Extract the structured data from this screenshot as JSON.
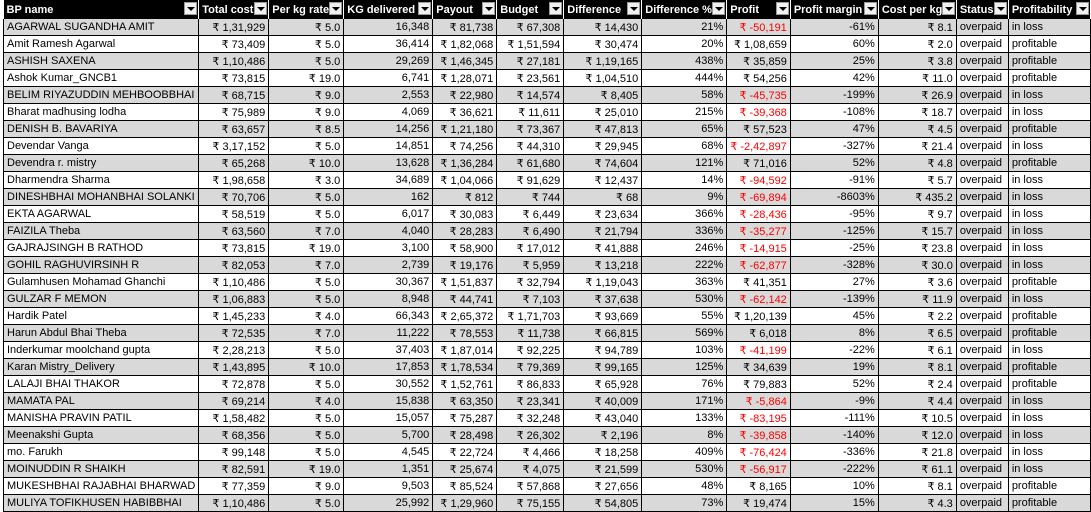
{
  "headers": [
    "BP name",
    "Total cost",
    "Per kg rate",
    "KG delivered",
    "Payout",
    "Budget",
    "Difference",
    "Difference %",
    "Profit",
    "Profit margin",
    "Cost per kg",
    "Status",
    "Profitability"
  ],
  "rows": [
    [
      "AGARWAL SUGANDHA AMIT",
      "₹ 1,31,929",
      "₹ 5.0",
      "16,348",
      "₹ 81,738",
      "₹ 67,308",
      "₹ 14,430",
      "21%",
      "₹ -50,191",
      "-61%",
      "₹ 8.1",
      "overpaid",
      "in loss"
    ],
    [
      "Amit Ramesh Agarwal",
      "₹ 73,409",
      "₹ 5.0",
      "36,414",
      "₹ 1,82,068",
      "₹ 1,51,594",
      "₹ 30,474",
      "20%",
      "₹ 1,08,659",
      "60%",
      "₹ 2.0",
      "overpaid",
      "profitable"
    ],
    [
      "ASHISH SAXENA",
      "₹ 1,10,486",
      "₹ 5.0",
      "29,269",
      "₹ 1,46,345",
      "₹ 27,181",
      "₹ 1,19,165",
      "438%",
      "₹ 35,859",
      "25%",
      "₹ 3.8",
      "overpaid",
      "profitable"
    ],
    [
      "Ashok Kumar_GNCB1",
      "₹ 73,815",
      "₹ 19.0",
      "6,741",
      "₹ 1,28,071",
      "₹ 23,561",
      "₹ 1,04,510",
      "444%",
      "₹ 54,256",
      "42%",
      "₹ 11.0",
      "overpaid",
      "profitable"
    ],
    [
      "BELIM RIYAZUDDIN MEHBOOBBHAI",
      "₹ 68,715",
      "₹ 9.0",
      "2,553",
      "₹ 22,980",
      "₹ 14,574",
      "₹ 8,405",
      "58%",
      "₹ -45,735",
      "-199%",
      "₹ 26.9",
      "overpaid",
      "in loss"
    ],
    [
      "Bharat madhusing lodha",
      "₹ 75,989",
      "₹ 9.0",
      "4,069",
      "₹ 36,621",
      "₹ 11,611",
      "₹ 25,010",
      "215%",
      "₹ -39,368",
      "-108%",
      "₹ 18.7",
      "overpaid",
      "in loss"
    ],
    [
      "DENISH B. BAVARIYA",
      "₹ 63,657",
      "₹ 8.5",
      "14,256",
      "₹ 1,21,180",
      "₹ 73,367",
      "₹ 47,813",
      "65%",
      "₹ 57,523",
      "47%",
      "₹ 4.5",
      "overpaid",
      "profitable"
    ],
    [
      "Devendar Vanga",
      "₹ 3,17,152",
      "₹ 5.0",
      "14,851",
      "₹ 74,256",
      "₹ 44,310",
      "₹ 29,945",
      "68%",
      "₹ -2,42,897",
      "-327%",
      "₹ 21.4",
      "overpaid",
      "in loss"
    ],
    [
      "Devendra r. mistry",
      "₹ 65,268",
      "₹ 10.0",
      "13,628",
      "₹ 1,36,284",
      "₹ 61,680",
      "₹ 74,604",
      "121%",
      "₹ 71,016",
      "52%",
      "₹ 4.8",
      "overpaid",
      "profitable"
    ],
    [
      "Dharmendra Sharma",
      "₹ 1,98,658",
      "₹ 3.0",
      "34,689",
      "₹ 1,04,066",
      "₹ 91,629",
      "₹ 12,437",
      "14%",
      "₹ -94,592",
      "-91%",
      "₹ 5.7",
      "overpaid",
      "in loss"
    ],
    [
      "DINESHBHAI MOHANBHAI SOLANKI",
      "₹ 70,706",
      "₹ 5.0",
      "162",
      "₹ 812",
      "₹ 744",
      "₹ 68",
      "9%",
      "₹ -69,894",
      "-8603%",
      "₹ 435.2",
      "overpaid",
      "in loss"
    ],
    [
      "EKTA AGARWAL",
      "₹ 58,519",
      "₹ 5.0",
      "6,017",
      "₹ 30,083",
      "₹ 6,449",
      "₹ 23,634",
      "366%",
      "₹ -28,436",
      "-95%",
      "₹ 9.7",
      "overpaid",
      "in loss"
    ],
    [
      "FAIZILA Theba",
      "₹ 63,560",
      "₹ 7.0",
      "4,040",
      "₹ 28,283",
      "₹ 6,490",
      "₹ 21,794",
      "336%",
      "₹ -35,277",
      "-125%",
      "₹ 15.7",
      "overpaid",
      "in loss"
    ],
    [
      "GAJRAJSINGH B RATHOD",
      "₹ 73,815",
      "₹ 19.0",
      "3,100",
      "₹ 58,900",
      "₹ 17,012",
      "₹ 41,888",
      "246%",
      "₹ -14,915",
      "-25%",
      "₹ 23.8",
      "overpaid",
      "in loss"
    ],
    [
      "GOHIL RAGHUVIRSINH R",
      "₹ 82,053",
      "₹ 7.0",
      "2,739",
      "₹ 19,176",
      "₹ 5,959",
      "₹ 13,218",
      "222%",
      "₹ -62,877",
      "-328%",
      "₹ 30.0",
      "overpaid",
      "in loss"
    ],
    [
      "Gulamhusen Mohamad Ghanchi",
      "₹ 1,10,486",
      "₹ 5.0",
      "30,367",
      "₹ 1,51,837",
      "₹ 32,794",
      "₹ 1,19,043",
      "363%",
      "₹ 41,351",
      "27%",
      "₹ 3.6",
      "overpaid",
      "profitable"
    ],
    [
      "GULZAR F MEMON",
      "₹ 1,06,883",
      "₹ 5.0",
      "8,948",
      "₹ 44,741",
      "₹ 7,103",
      "₹ 37,638",
      "530%",
      "₹ -62,142",
      "-139%",
      "₹ 11.9",
      "overpaid",
      "in loss"
    ],
    [
      "Hardik Patel",
      "₹ 1,45,233",
      "₹ 4.0",
      "66,343",
      "₹ 2,65,372",
      "₹ 1,71,703",
      "₹ 93,669",
      "55%",
      "₹ 1,20,139",
      "45%",
      "₹ 2.2",
      "overpaid",
      "profitable"
    ],
    [
      "Harun Abdul Bhai Theba",
      "₹ 72,535",
      "₹ 7.0",
      "11,222",
      "₹ 78,553",
      "₹ 11,738",
      "₹ 66,815",
      "569%",
      "₹ 6,018",
      "8%",
      "₹ 6.5",
      "overpaid",
      "profitable"
    ],
    [
      "Inderkumar moolchand gupta",
      "₹ 2,28,213",
      "₹ 5.0",
      "37,403",
      "₹ 1,87,014",
      "₹ 92,225",
      "₹ 94,789",
      "103%",
      "₹ -41,199",
      "-22%",
      "₹ 6.1",
      "overpaid",
      "in loss"
    ],
    [
      "Karan Mistry_Delivery",
      "₹ 1,43,895",
      "₹ 10.0",
      "17,853",
      "₹ 1,78,534",
      "₹ 79,369",
      "₹ 99,165",
      "125%",
      "₹ 34,639",
      "19%",
      "₹ 8.1",
      "overpaid",
      "profitable"
    ],
    [
      "LALAJI BHAI THAKOR",
      "₹ 72,878",
      "₹ 5.0",
      "30,552",
      "₹ 1,52,761",
      "₹ 86,833",
      "₹ 65,928",
      "76%",
      "₹ 79,883",
      "52%",
      "₹ 2.4",
      "overpaid",
      "profitable"
    ],
    [
      "MAMATA PAL",
      "₹ 69,214",
      "₹ 4.0",
      "15,838",
      "₹ 63,350",
      "₹ 23,341",
      "₹ 40,009",
      "171%",
      "₹ -5,864",
      "-9%",
      "₹ 4.4",
      "overpaid",
      "in loss"
    ],
    [
      "MANISHA PRAVIN PATIL",
      "₹ 1,58,482",
      "₹ 5.0",
      "15,057",
      "₹ 75,287",
      "₹ 32,248",
      "₹ 43,040",
      "133%",
      "₹ -83,195",
      "-111%",
      "₹ 10.5",
      "overpaid",
      "in loss"
    ],
    [
      "Meenakshi Gupta",
      "₹ 68,356",
      "₹ 5.0",
      "5,700",
      "₹ 28,498",
      "₹ 26,302",
      "₹ 2,196",
      "8%",
      "₹ -39,858",
      "-140%",
      "₹ 12.0",
      "overpaid",
      "in loss"
    ],
    [
      "mo. Farukh",
      "₹ 99,148",
      "₹ 5.0",
      "4,545",
      "₹ 22,724",
      "₹ 4,466",
      "₹ 18,258",
      "409%",
      "₹ -76,424",
      "-336%",
      "₹ 21.8",
      "overpaid",
      "in loss"
    ],
    [
      "MOINUDDIN R SHAIKH",
      "₹ 82,591",
      "₹ 19.0",
      "1,351",
      "₹ 25,674",
      "₹ 4,075",
      "₹ 21,599",
      "530%",
      "₹ -56,917",
      "-222%",
      "₹ 61.1",
      "overpaid",
      "in loss"
    ],
    [
      "MUKESHBHAI RAJABHAI BHARWAD",
      "₹ 77,359",
      "₹ 9.0",
      "9,503",
      "₹ 85,524",
      "₹ 57,868",
      "₹ 27,656",
      "48%",
      "₹ 8,165",
      "10%",
      "₹ 8.1",
      "overpaid",
      "profitable"
    ],
    [
      "MULIYA TOFIKHUSEN HABIBBHAI",
      "₹ 1,10,486",
      "₹ 5.0",
      "25,992",
      "₹ 1,29,960",
      "₹ 75,155",
      "₹ 54,805",
      "73%",
      "₹ 19,474",
      "15%",
      "₹ 4.3",
      "overpaid",
      "profitable"
    ]
  ]
}
